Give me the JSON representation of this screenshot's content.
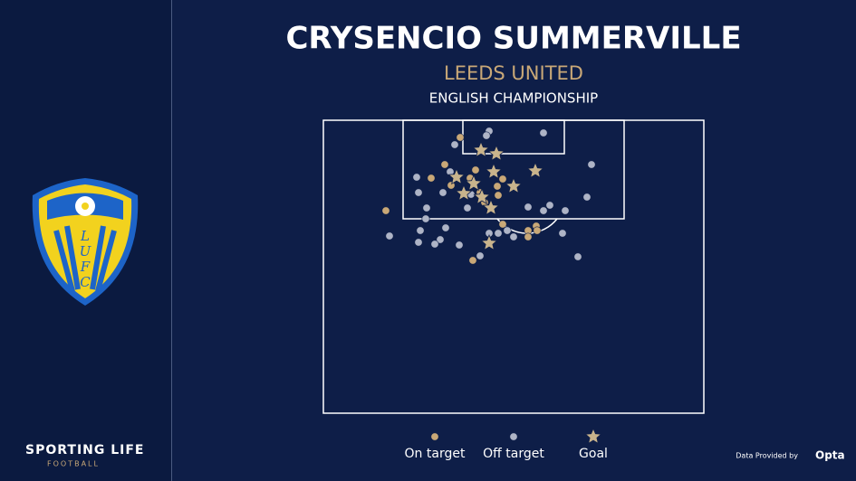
{
  "brand": "SPORTING LIFE",
  "brand_sub": "FOOTBALL",
  "credit": "Data Provided by",
  "provider": "Opta",
  "crest_letters": [
    "L",
    "U",
    "F",
    "C"
  ],
  "chart_data": {
    "type": "scatter",
    "title": "CRYSENCIO SUMMERVILLE",
    "subtitle": "LEEDS UNITED",
    "competition": "ENGLISH CHAMPIONSHIP",
    "xlim": [
      0,
      420
    ],
    "ylim": [
      0,
      324
    ],
    "series": [
      {
        "name": "On target",
        "color": "#c9a877",
        "marker": "circle",
        "x": [
          151,
          134,
          119,
          168,
          141,
          192,
          198,
          193,
          173,
          69,
          198,
          226,
          235,
          226,
          236,
          165,
          178,
          162
        ],
        "y": [
          19,
          49,
          64,
          55,
          72,
          73,
          65,
          83,
          80,
          100,
          115,
          122,
          117,
          129,
          122,
          155,
          91,
          64
        ]
      },
      {
        "name": "Off target",
        "color": "#aeb4c6",
        "marker": "circle",
        "x": [
          183,
          180,
          243,
          145,
          296,
          103,
          105,
          132,
          140,
          163,
          159,
          114,
          113,
          135,
          129,
          123,
          105,
          73,
          107,
          150,
          173,
          210,
          193,
          203,
          243,
          250,
          267,
          264,
          281,
          291,
          226,
          183
        ],
        "y": [
          12,
          17,
          14,
          27,
          49,
          63,
          80,
          80,
          57,
          82,
          97,
          97,
          109,
          119,
          132,
          137,
          135,
          128,
          122,
          138,
          150,
          129,
          125,
          122,
          100,
          94,
          100,
          125,
          151,
          85,
          96,
          125
        ]
      },
      {
        "name": "Goal",
        "color": "#c9b48c",
        "marker": "star",
        "x": [
          174,
          191,
          234,
          147,
          188,
          166,
          210,
          155,
          175,
          185,
          183
        ],
        "y": [
          33,
          37,
          56,
          63,
          57,
          70,
          73,
          81,
          85,
          97,
          136
        ]
      }
    ]
  }
}
